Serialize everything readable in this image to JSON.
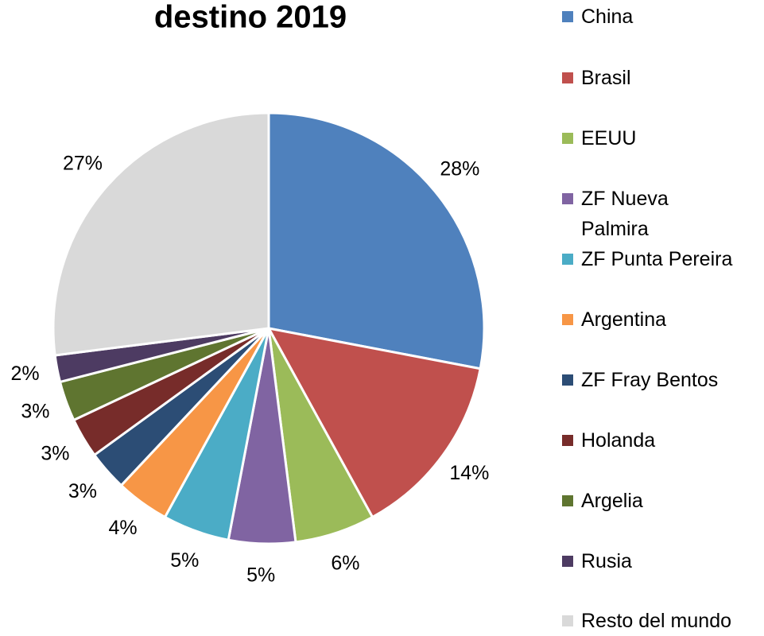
{
  "chart_data": {
    "type": "pie",
    "title": "destino 2019",
    "categories": [
      "China",
      "Brasil",
      "EEUU",
      "ZF Nueva Palmira",
      "ZF Punta Pereira",
      "Argentina",
      "ZF Fray Bentos",
      "Holanda",
      "Argelia",
      "Rusia",
      "Resto del mundo"
    ],
    "values": [
      28,
      14,
      6,
      5,
      5,
      4,
      3,
      3,
      3,
      2,
      27
    ],
    "value_labels": [
      "28%",
      "14%",
      "6%",
      "5%",
      "5%",
      "4%",
      "3%",
      "3%",
      "3%",
      "2%",
      "27%"
    ],
    "colors": [
      "#4f81bd",
      "#c0504d",
      "#9bbb59",
      "#8064a2",
      "#4bacc6",
      "#f79646",
      "#2c4d75",
      "#772c2a",
      "#5f7530",
      "#4d3b62",
      "#d9d9d9"
    ],
    "legend": "right"
  }
}
